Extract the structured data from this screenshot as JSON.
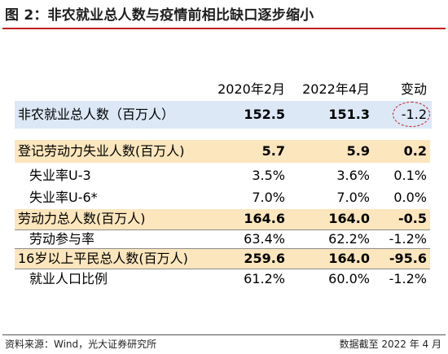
{
  "title": "图 2：非农就业总人数与疫情前相比缺口逐步缩小",
  "columns": [
    "2020年2月",
    "2022年4月",
    "变动"
  ],
  "rows": [
    {
      "label": "非农就业总人数（百万人）",
      "v1": "152.5",
      "v2": "151.3",
      "v3": "-1.2"
    },
    {
      "label": "登记劳动力失业人数(百万人)",
      "v1": "5.7",
      "v2": "5.9",
      "v3": "0.2"
    },
    {
      "label": "失业率U-3",
      "v1": "3.5%",
      "v2": "3.6%",
      "v3": "0.1%"
    },
    {
      "label": "失业率U-6*",
      "v1": "7.0%",
      "v2": "7.0%",
      "v3": "0.0%"
    },
    {
      "label": "劳动力总人数(百万人)",
      "v1": "164.6",
      "v2": "164.0",
      "v3": "-0.5"
    },
    {
      "label": "劳动参与率",
      "v1": "63.4%",
      "v2": "62.2%",
      "v3": "-1.2%"
    },
    {
      "label": "16岁以上平民总人数(百万人)",
      "v1": "259.6",
      "v2": "164.0",
      "v3": "-95.6"
    },
    {
      "label": "就业人口比例",
      "v1": "61.2%",
      "v2": "60.0%",
      "v3": "-1.2%"
    }
  ],
  "source": "资料来源：Wind，光大证券研究所",
  "date_note": "数据截至 2022 年 4 月",
  "colors": {
    "title_rule": "#c21f24",
    "highlight_blue": "#dce8f6",
    "highlight_tan": "#fbe6bd",
    "circle": "#d0191f"
  }
}
